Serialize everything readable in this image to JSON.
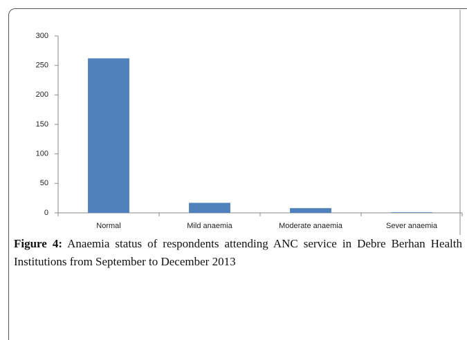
{
  "chart_data": {
    "type": "bar",
    "categories": [
      "Normal",
      "Mild anaemia",
      "Moderate anaemia",
      "Sever anaemia"
    ],
    "values": [
      262,
      17,
      8,
      1
    ],
    "color": "#4f81bd",
    "ylim": [
      0,
      300
    ],
    "yticks": [
      0,
      50,
      100,
      150,
      200,
      250,
      300
    ],
    "grid": false
  },
  "caption": {
    "label": "Figure 4:",
    "text": "Anaemia status of respondents attending ANC service in Debre Berhan Health Institutions from September to December 2013"
  }
}
